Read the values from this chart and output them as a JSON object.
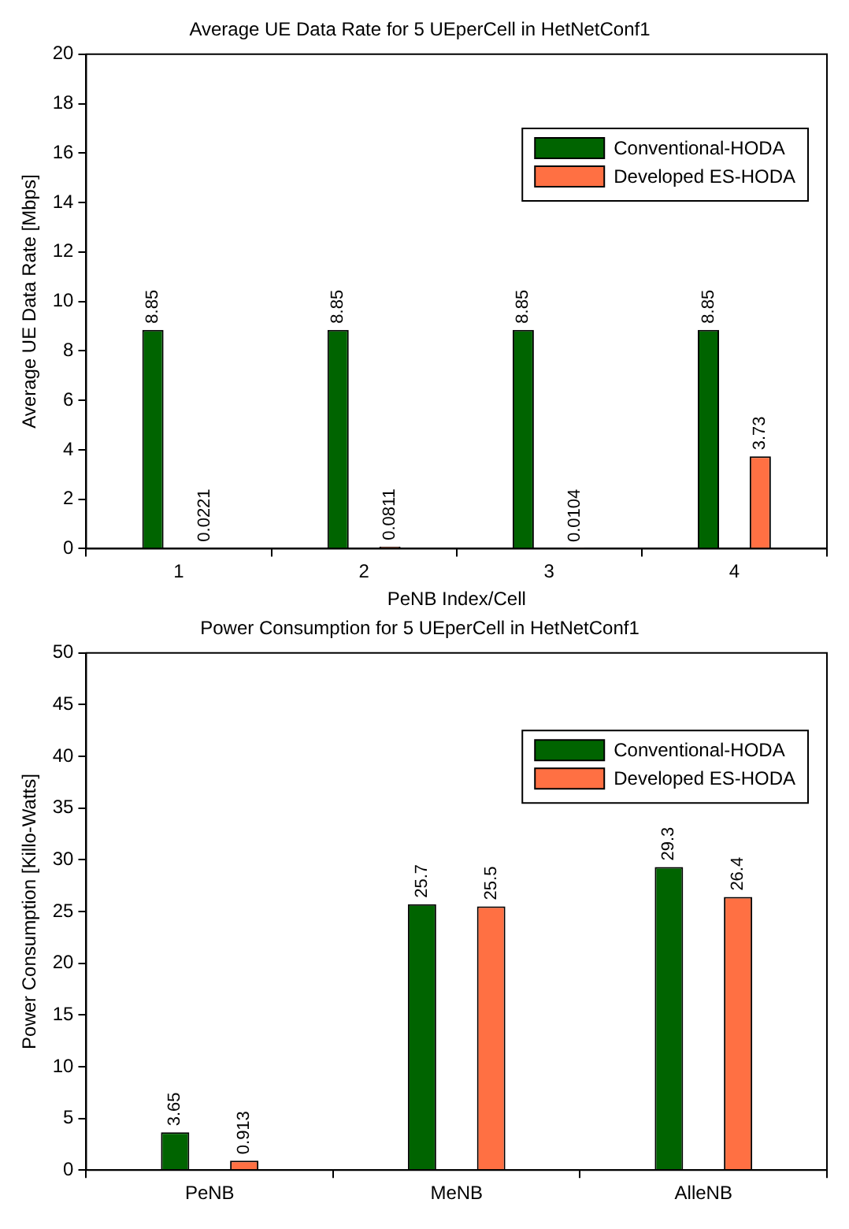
{
  "chart_data": [
    {
      "type": "bar",
      "title": "Average UE Data Rate for 5 UEperCell in HetNetConf1",
      "xlabel": "PeNB Index/Cell",
      "ylabel": "Average UE Data Rate [Mbps]",
      "categories": [
        "1",
        "2",
        "3",
        "4"
      ],
      "series": [
        {
          "name": "Conventional-HODA",
          "color": "#006400",
          "values": [
            8.85,
            8.85,
            8.85,
            8.85
          ]
        },
        {
          "name": "Developed ES-HODA",
          "color": "#ff7043",
          "values": [
            0.0221,
            0.0811,
            0.0104,
            3.73
          ]
        }
      ],
      "ylim": [
        0,
        20
      ],
      "yticks": [
        0,
        2,
        4,
        6,
        8,
        10,
        12,
        14,
        16,
        18,
        20
      ],
      "grid": false,
      "legend": "top right",
      "data_labels": true
    },
    {
      "type": "bar",
      "title": "Power Consumption for 5 UEperCell in HetNetConf1",
      "ylabel": "Power Consumption [Killo-Watts]",
      "categories": [
        "PeNB",
        "MeNB",
        "AlleNB"
      ],
      "series": [
        {
          "name": "Conventional-HODA",
          "color": "#006400",
          "values": [
            3.65,
            25.7,
            29.3
          ]
        },
        {
          "name": "Developed ES-HODA",
          "color": "#ff7043",
          "values": [
            0.913,
            25.5,
            26.4
          ]
        }
      ],
      "ylim": [
        0,
        50
      ],
      "yticks": [
        0,
        5,
        10,
        15,
        20,
        25,
        30,
        35,
        40,
        45,
        50
      ],
      "grid": false,
      "legend": "top right",
      "data_labels": true
    }
  ]
}
